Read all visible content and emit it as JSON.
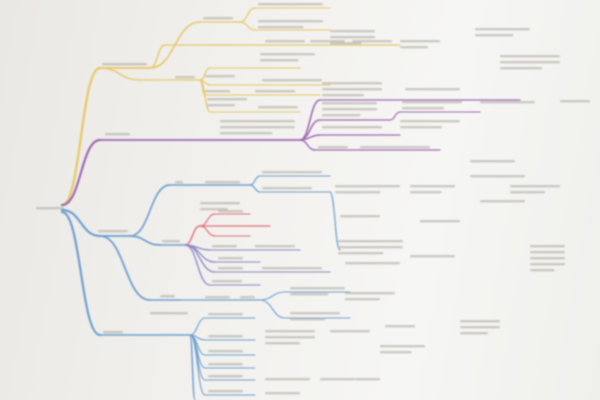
{
  "diagram": {
    "type": "mind-map photo",
    "branch_colors": {
      "top_branch": "#e8c766",
      "middle_branch": "#a06ab4",
      "lower_branch": "#6f9fd0",
      "accent_branch": "#e0707a",
      "subbranch": "#8a86c4",
      "text_smudge": "#b9b6ad"
    }
  }
}
